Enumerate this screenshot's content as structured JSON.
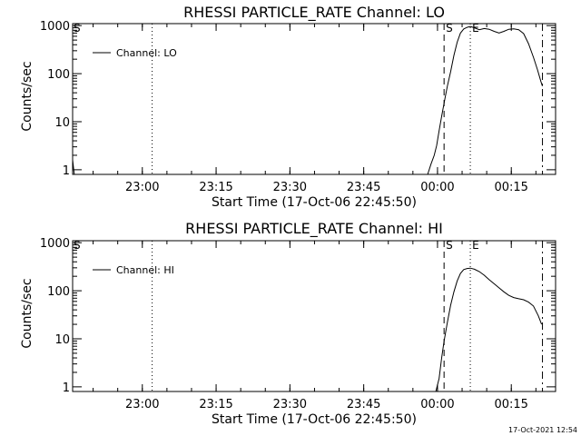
{
  "footer": {
    "timestamp": "17-Oct-2021 12:54"
  },
  "chart_data": [
    {
      "type": "line",
      "title": "RHESSI PARTICLE_RATE Channel: LO",
      "xlabel": "Start Time (17-Oct-06 22:45:50)",
      "ylabel": "Counts/sec",
      "y_scale": "log",
      "xlim": [
        "22:45:50",
        "00:24:00"
      ],
      "ylim": [
        0.8,
        1100
      ],
      "x_ticks": [
        "23:00",
        "23:15",
        "23:30",
        "23:45",
        "00:00",
        "00:15"
      ],
      "y_ticks": [
        "1",
        "10",
        "100",
        "1000"
      ],
      "legend": {
        "position": "top-left"
      },
      "series": [
        {
          "name": "Channel: LO",
          "points": [
            [
              "22:45:50",
              1.6
            ],
            [
              "22:46:10",
              0.8
            ],
            [
              "23:58:00",
              0.8
            ],
            [
              "23:58:40",
              1.3
            ],
            [
              "23:59:20",
              2.0
            ],
            [
              "23:59:50",
              3.2
            ],
            [
              "00:00:20",
              6.5
            ],
            [
              "00:00:50",
              13
            ],
            [
              "00:01:30",
              30
            ],
            [
              "00:02:00",
              55
            ],
            [
              "00:02:40",
              110
            ],
            [
              "00:03:20",
              240
            ],
            [
              "00:04:00",
              450
            ],
            [
              "00:04:40",
              700
            ],
            [
              "00:05:20",
              850
            ],
            [
              "00:06:00",
              920
            ],
            [
              "00:06:40",
              960
            ],
            [
              "00:07:30",
              900
            ],
            [
              "00:08:30",
              820
            ],
            [
              "00:09:30",
              870
            ],
            [
              "00:10:30",
              840
            ],
            [
              "00:11:30",
              760
            ],
            [
              "00:12:30",
              700
            ],
            [
              "00:13:30",
              760
            ],
            [
              "00:14:30",
              840
            ],
            [
              "00:15:30",
              860
            ],
            [
              "00:16:30",
              820
            ],
            [
              "00:17:30",
              680
            ],
            [
              "00:18:30",
              420
            ],
            [
              "00:19:30",
              220
            ],
            [
              "00:20:20",
              120
            ],
            [
              "00:21:00",
              70
            ],
            [
              "00:21:20",
              55
            ]
          ]
        }
      ],
      "markers": [
        {
          "label": "S",
          "time": "00:01:20",
          "style": "dashed"
        },
        {
          "label": "E",
          "time": "00:06:40",
          "style": "dotted"
        },
        {
          "label": "",
          "time": "00:21:20",
          "style": "dashdot"
        },
        {
          "label": "",
          "time": "23:02:00",
          "style": "dotted"
        }
      ],
      "corner_label": "S"
    },
    {
      "type": "line",
      "title": "RHESSI PARTICLE_RATE Channel: HI",
      "xlabel": "Start Time (17-Oct-06 22:45:50)",
      "ylabel": "Counts/sec",
      "y_scale": "log",
      "xlim": [
        "22:45:50",
        "00:24:00"
      ],
      "ylim": [
        0.8,
        1100
      ],
      "x_ticks": [
        "23:00",
        "23:15",
        "23:30",
        "23:45",
        "00:00",
        "00:15"
      ],
      "y_ticks": [
        "1",
        "10",
        "100",
        "1000"
      ],
      "legend": {
        "position": "top-left"
      },
      "series": [
        {
          "name": "Channel: HI",
          "points": [
            [
              "23:59:40",
              0.8
            ],
            [
              "00:00:20",
              1.5
            ],
            [
              "00:00:50",
              4
            ],
            [
              "00:01:20",
              9
            ],
            [
              "00:02:00",
              22
            ],
            [
              "00:02:40",
              50
            ],
            [
              "00:03:20",
              95
            ],
            [
              "00:04:00",
              160
            ],
            [
              "00:04:40",
              230
            ],
            [
              "00:05:20",
              275
            ],
            [
              "00:06:00",
              290
            ],
            [
              "00:06:40",
              295
            ],
            [
              "00:07:30",
              280
            ],
            [
              "00:08:30",
              250
            ],
            [
              "00:09:30",
              210
            ],
            [
              "00:10:30",
              170
            ],
            [
              "00:11:30",
              140
            ],
            [
              "00:12:30",
              115
            ],
            [
              "00:13:30",
              95
            ],
            [
              "00:14:30",
              80
            ],
            [
              "00:15:30",
              72
            ],
            [
              "00:16:30",
              68
            ],
            [
              "00:17:30",
              65
            ],
            [
              "00:18:30",
              58
            ],
            [
              "00:19:30",
              48
            ],
            [
              "00:20:30",
              30
            ],
            [
              "00:21:10",
              20
            ]
          ]
        }
      ],
      "markers": [
        {
          "label": "S",
          "time": "00:01:20",
          "style": "dashed"
        },
        {
          "label": "E",
          "time": "00:06:40",
          "style": "dotted"
        },
        {
          "label": "",
          "time": "00:21:20",
          "style": "dashdot"
        },
        {
          "label": "",
          "time": "23:02:00",
          "style": "dotted"
        }
      ],
      "corner_label": "S"
    }
  ]
}
